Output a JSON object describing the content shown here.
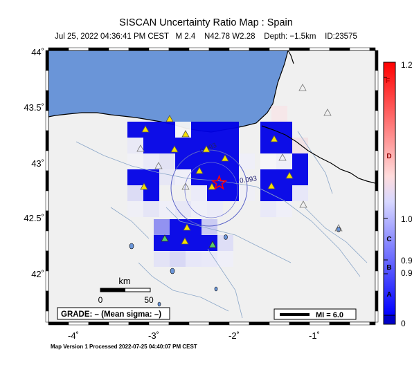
{
  "title": "SISCAN Uncertainty Ratio Map : Spain",
  "subtitle": "Jul 25, 2022 04:36:41 PM CEST   M 2.4    N42.78 W2.28    Depth: −1.5km    ID:23575",
  "footer": "Map Version 1 Processed 2022-07-25 04:40:07 PM CEST",
  "map": {
    "lon_range": [
      -4.5,
      -0.25
    ],
    "lat_range": [
      41.5,
      44.0
    ],
    "x_ticks": [
      "-4˚",
      "-3˚",
      "-2˚",
      "-1˚"
    ],
    "y_ticks": [
      "44˚",
      "43.5˚",
      "43˚",
      "42.5˚",
      "42˚"
    ],
    "epicenter": {
      "lat": 42.78,
      "lon": -2.28
    },
    "contour_label": "0.093",
    "contour_label_2": "0.093",
    "scale_bar": {
      "unit": "km",
      "labels": [
        "0",
        "50"
      ]
    },
    "grade_box": "GRADE: – (Mean sigma: –)",
    "mi_legend": "MI = 6.0",
    "colors": {
      "sea": "#6a95d8",
      "land": "#f0f0f0",
      "cell_high": "#0000e6",
      "station": "#f5e000",
      "station_alt": "#59cc6a",
      "epicenter": "#ff0000"
    }
  },
  "colorbar": {
    "grade_labels": [
      "F",
      "D",
      "C",
      "B",
      "A"
    ],
    "value_labels": [
      "1.2",
      "1.0",
      "0.9",
      "0.9",
      "0"
    ]
  }
}
